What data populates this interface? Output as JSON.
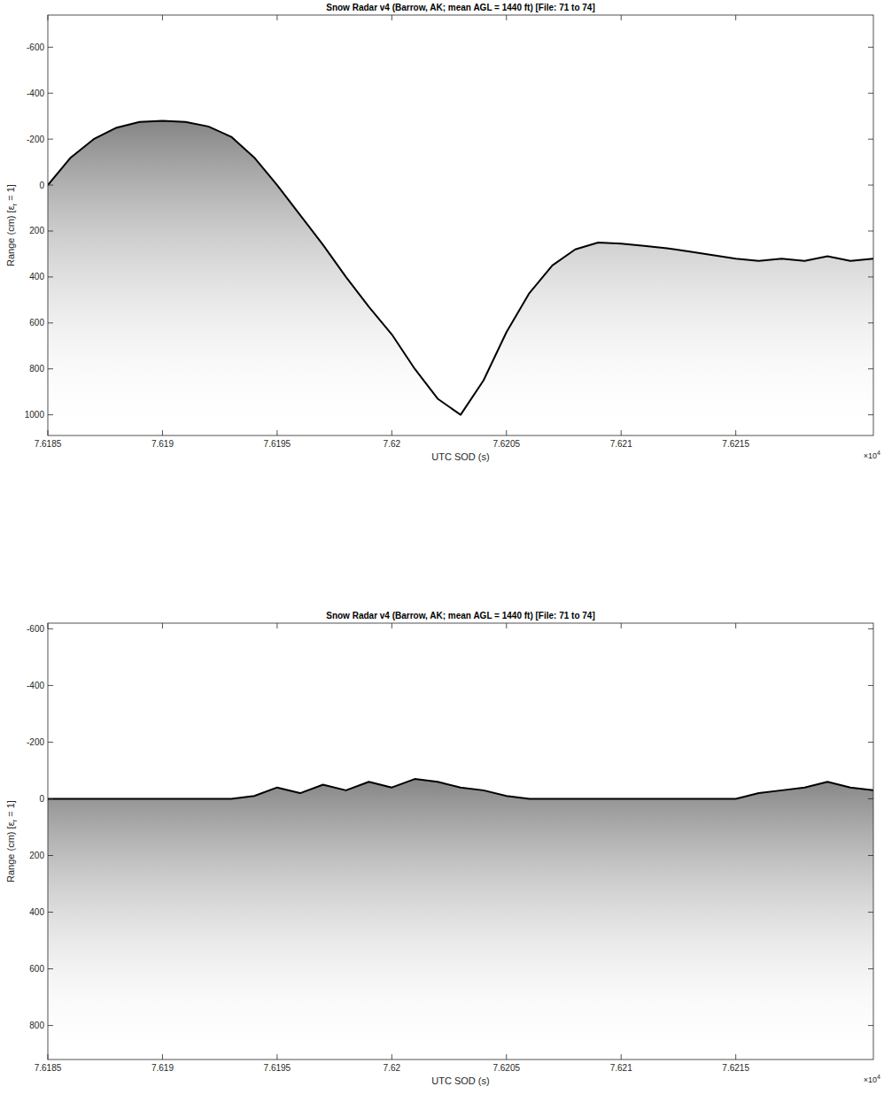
{
  "chart_data": [
    {
      "type": "line",
      "title": "Snow Radar v4 (Barrow, AK; mean AGL = 1440 ft) [File: 71 to 74]",
      "xlabel": "UTC SOD (s)",
      "ylabel": [
        "Range (cm) [ε",
        "r",
        " = 1]"
      ],
      "x_multiplier": [
        "×10",
        "4"
      ],
      "x": [
        7.6185,
        7.6186,
        7.6187,
        7.6188,
        7.6189,
        7.619,
        7.6191,
        7.6192,
        7.6193,
        7.6194,
        7.6195,
        7.6196,
        7.6197,
        7.6198,
        7.6199,
        7.62,
        7.6201,
        7.6202,
        7.6203,
        7.6204,
        7.6205,
        7.6206,
        7.6207,
        7.6208,
        7.6209,
        7.621,
        7.6211,
        7.6212,
        7.6213,
        7.6214,
        7.6215,
        7.6216,
        7.6217,
        7.6218,
        7.6219,
        7.622,
        7.6221
      ],
      "values": [
        0,
        -120,
        -200,
        -250,
        -275,
        -280,
        -275,
        -255,
        -210,
        -120,
        0,
        130,
        260,
        400,
        530,
        650,
        800,
        930,
        1000,
        850,
        640,
        470,
        350,
        280,
        250,
        255,
        265,
        275,
        290,
        305,
        320,
        330,
        320,
        330,
        310,
        330,
        320
      ],
      "color": "#000000",
      "xlim": [
        7.6185,
        7.6221
      ],
      "ylim": [
        1090,
        -740
      ],
      "xticks": [
        7.6185,
        7.619,
        7.6195,
        7.62,
        7.6205,
        7.621,
        7.6215
      ],
      "yticks": [
        -600,
        -400,
        -200,
        0,
        200,
        400,
        600,
        800,
        1000
      ],
      "grid": false
    },
    {
      "type": "line",
      "title": "Snow Radar v4 (Barrow, AK; mean AGL = 1440 ft) [File: 71 to 74]",
      "xlabel": "UTC SOD (s)",
      "ylabel": [
        "Range (cm) [ε",
        "r",
        " = 1]"
      ],
      "x_multiplier": [
        "×10",
        "4"
      ],
      "x": [
        7.6185,
        7.6186,
        7.6187,
        7.6188,
        7.6189,
        7.619,
        7.6191,
        7.6192,
        7.6193,
        7.6194,
        7.6195,
        7.6196,
        7.6197,
        7.6198,
        7.6199,
        7.62,
        7.6201,
        7.6202,
        7.6203,
        7.6204,
        7.6205,
        7.6206,
        7.6207,
        7.6208,
        7.6209,
        7.621,
        7.6211,
        7.6212,
        7.6213,
        7.6214,
        7.6215,
        7.6216,
        7.6217,
        7.6218,
        7.6219,
        7.622,
        7.6221
      ],
      "values": [
        0,
        0,
        0,
        0,
        0,
        0,
        0,
        0,
        0,
        -10,
        -40,
        -20,
        -50,
        -30,
        -60,
        -40,
        -70,
        -60,
        -40,
        -30,
        -10,
        0,
        0,
        0,
        0,
        0,
        0,
        0,
        0,
        0,
        0,
        -20,
        -30,
        -40,
        -60,
        -40,
        -30
      ],
      "color": "#000000",
      "xlim": [
        7.6185,
        7.6221
      ],
      "ylim": [
        920,
        -620
      ],
      "xticks": [
        7.6185,
        7.619,
        7.6195,
        7.62,
        7.6205,
        7.621,
        7.6215
      ],
      "yticks": [
        -600,
        -400,
        -200,
        0,
        200,
        400,
        600,
        800
      ],
      "grid": false
    }
  ]
}
